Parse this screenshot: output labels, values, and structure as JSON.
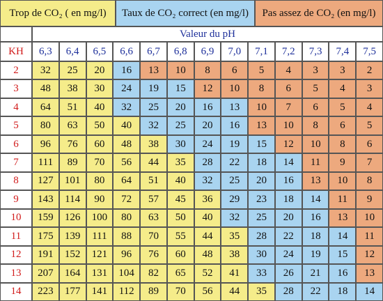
{
  "legend": [
    {
      "label": "Trop de CO₂ ( en mg/l)",
      "color": "#f5ec8a"
    },
    {
      "label": "Taux de CO₂ correct (en mg/l)",
      "color": "#a9d4f0"
    },
    {
      "label": "Pas assez de CO₂ (en mg/l)",
      "color": "#eda97e"
    }
  ],
  "table": {
    "ph_title": "Valeur du pH",
    "kh_header": "KH",
    "ph_values": [
      "6,3",
      "6,4",
      "6,5",
      "6,6",
      "6,7",
      "6,8",
      "6,9",
      "7,0",
      "7,1",
      "7,2",
      "7,3",
      "7,4",
      "7,5"
    ],
    "rows": [
      {
        "kh": "2",
        "trop": [
          32,
          25,
          20
        ],
        "correct": [
          16
        ],
        "pas": [
          13,
          10,
          8,
          6,
          5,
          4,
          3,
          3,
          2
        ]
      },
      {
        "kh": "3",
        "trop": [
          48,
          38,
          30
        ],
        "correct": [
          24,
          19,
          15
        ],
        "pas": [
          12,
          10,
          8,
          6,
          5,
          4,
          3
        ]
      },
      {
        "kh": "4",
        "trop": [
          64,
          51,
          40
        ],
        "correct": [
          32,
          25,
          20,
          16,
          13
        ],
        "pas": [
          10,
          7,
          6,
          5,
          4
        ]
      },
      {
        "kh": "5",
        "trop": [
          80,
          63,
          50,
          40
        ],
        "correct": [
          32,
          25,
          20,
          16
        ],
        "pas": [
          13,
          10,
          8,
          6,
          5
        ]
      },
      {
        "kh": "6",
        "trop": [
          96,
          76,
          60,
          48,
          38
        ],
        "correct": [
          30,
          24,
          19,
          15
        ],
        "pas": [
          12,
          10,
          8,
          6
        ]
      },
      {
        "kh": "7",
        "trop": [
          111,
          89,
          70,
          56,
          44,
          35
        ],
        "correct": [
          28,
          22,
          18,
          14
        ],
        "pas": [
          11,
          9,
          7
        ]
      },
      {
        "kh": "8",
        "trop": [
          127,
          101,
          80,
          64,
          51,
          40
        ],
        "correct": [
          32,
          25,
          20,
          16
        ],
        "pas": [
          13,
          10,
          8
        ]
      },
      {
        "kh": "9",
        "trop": [
          143,
          114,
          90,
          72,
          57,
          45,
          36
        ],
        "correct": [
          29,
          23,
          18,
          14
        ],
        "pas": [
          11,
          9
        ]
      },
      {
        "kh": "10",
        "trop": [
          159,
          126,
          100,
          80,
          63,
          50,
          40
        ],
        "correct": [
          32,
          25,
          20,
          16
        ],
        "pas": [
          13,
          10
        ]
      },
      {
        "kh": "11",
        "trop": [
          175,
          139,
          111,
          88,
          70,
          55,
          44,
          35
        ],
        "correct": [
          28,
          22,
          18,
          14
        ],
        "pas": [
          11
        ]
      },
      {
        "kh": "12",
        "trop": [
          191,
          152,
          121,
          96,
          76,
          60,
          48,
          38
        ],
        "correct": [
          30,
          24,
          19,
          15
        ],
        "pas": [
          12
        ]
      },
      {
        "kh": "13",
        "trop": [
          207,
          164,
          131,
          104,
          82,
          65,
          52,
          41
        ],
        "correct": [
          33,
          26,
          21,
          16
        ],
        "pas": [
          13
        ]
      },
      {
        "kh": "14",
        "trop": [
          223,
          177,
          141,
          112,
          89,
          70,
          56,
          44,
          35
        ],
        "correct": [
          28,
          22,
          18,
          14
        ],
        "pas": []
      }
    ]
  }
}
